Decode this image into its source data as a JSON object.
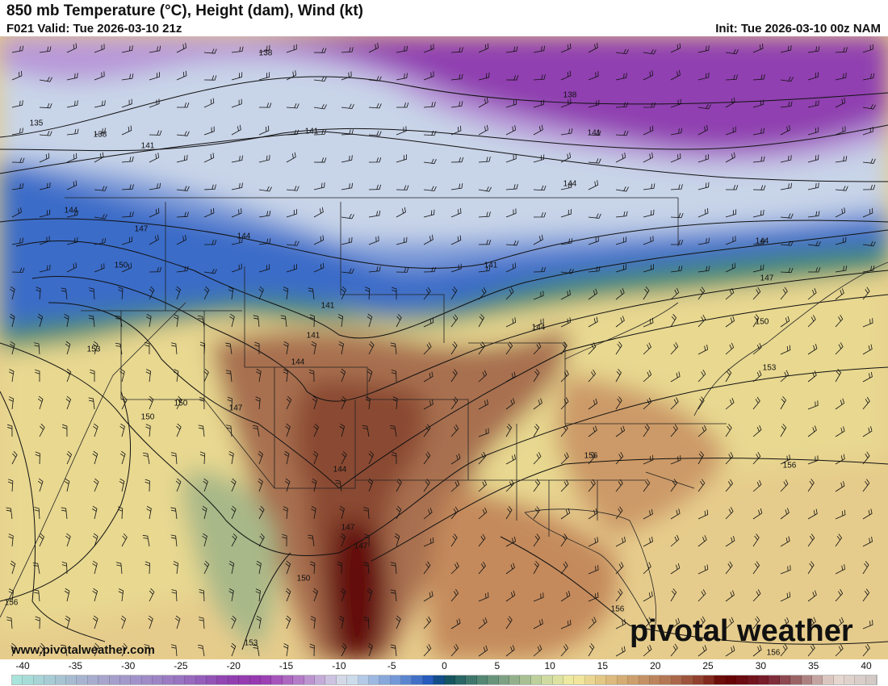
{
  "header": {
    "title": "850 mb Temperature (°C), Height (dam), Wind (kt)",
    "valid": "F021 Valid: Tue 2026-03-10 21z",
    "init": "Init: Tue 2026-03-10 00z NAM"
  },
  "map": {
    "height_labels": [
      "138",
      "138",
      "135",
      "138",
      "141",
      "141",
      "141",
      "144",
      "144",
      "147",
      "144",
      "150",
      "141",
      "144",
      "147",
      "141",
      "150",
      "141",
      "144",
      "153",
      "144",
      "153",
      "150",
      "147",
      "150",
      "144",
      "156",
      "156",
      "147",
      "147",
      "150",
      "156",
      "156",
      "153",
      "156"
    ],
    "watermark_url": "www.pivotalweather.com",
    "logo_text": "pivotal weather"
  },
  "colorbar": {
    "unit": "°C",
    "tick_labels": [
      "-40",
      "-35",
      "-30",
      "-25",
      "-20",
      "-15",
      "-10",
      "-5",
      "0",
      "5",
      "10",
      "15",
      "20",
      "25",
      "30",
      "35",
      "40"
    ],
    "range": [
      -40,
      40
    ],
    "color_stops": [
      [
        -40,
        "#a8e8dc"
      ],
      [
        -36,
        "#a8c8d4"
      ],
      [
        -32,
        "#a8a8cc"
      ],
      [
        -28,
        "#a090c8"
      ],
      [
        -24,
        "#9870c0"
      ],
      [
        -20,
        "#9040b0"
      ],
      [
        -17,
        "#9838b0"
      ],
      [
        -14,
        "#b070c4"
      ],
      [
        -11,
        "#c8b8dc"
      ],
      [
        -9,
        "#d8e4ec"
      ],
      [
        -7,
        "#a8c0e4"
      ],
      [
        -4,
        "#6890d4"
      ],
      [
        -1,
        "#1a50b8"
      ],
      [
        0,
        "#0c4c5c"
      ],
      [
        3,
        "#4a8070"
      ],
      [
        6,
        "#88a888"
      ],
      [
        9,
        "#c8d8a0"
      ],
      [
        12,
        "#f4ec a0"
      ],
      [
        15,
        "#e0c080"
      ],
      [
        18,
        "#c89868"
      ],
      [
        21,
        "#b07050"
      ],
      [
        24,
        "#8c3828"
      ],
      [
        26,
        "#640000"
      ],
      [
        30,
        "#7a2030"
      ],
      [
        33,
        "#a07070"
      ],
      [
        36,
        "#e8d8d0"
      ],
      [
        40,
        "#d0c8c4"
      ]
    ]
  }
}
